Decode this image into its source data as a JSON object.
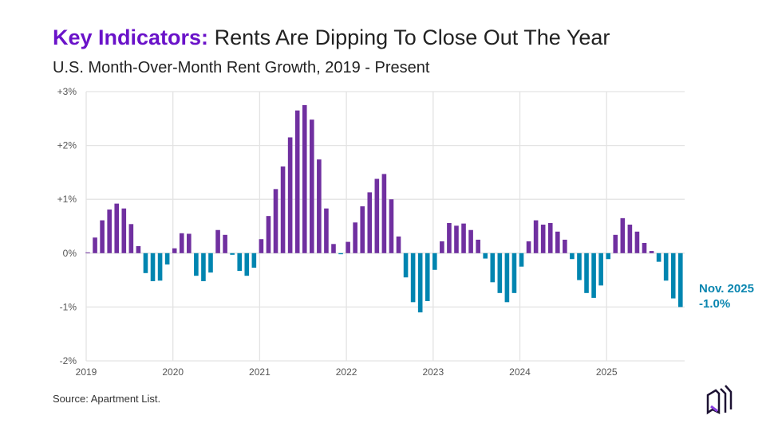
{
  "title_keyword": "Key Indicators:",
  "title_rest": " Rents Are Dipping To Close Out The Year",
  "subtitle": "U.S. Month-Over-Month Rent Growth, 2019 - Present",
  "source": "Source: Apartment List.",
  "callout": {
    "line1": "Nov. 2025",
    "line2": "-1.0%"
  },
  "colors": {
    "positive": "#7030a0",
    "negative": "#0085b0",
    "title_accent": "#6a12c9",
    "grid": "#e3e3e3"
  },
  "logo": "apartment-list-logo",
  "chart_data": {
    "type": "bar",
    "title": "Key Indicators: Rents Are Dipping To Close Out The Year",
    "subtitle": "U.S. Month-Over-Month Rent Growth, 2019 - Present",
    "xlabel": "",
    "ylabel": "",
    "x_start": "2019-01",
    "x_end": "2025-11",
    "x_tick_labels": [
      "2019",
      "2020",
      "2021",
      "2022",
      "2023",
      "2024",
      "2025"
    ],
    "y_tick_labels": [
      "-2%",
      "-1%",
      "0%",
      "+1%",
      "+2%",
      "+3%"
    ],
    "y_ticks": [
      -2,
      -1,
      0,
      1,
      2,
      3
    ],
    "ylim": [
      -2,
      3
    ],
    "grid": true,
    "unit": "%",
    "values": [
      0.0,
      0.29,
      0.61,
      0.81,
      0.92,
      0.83,
      0.54,
      0.13,
      -0.37,
      -0.52,
      -0.51,
      -0.21,
      0.09,
      0.37,
      0.36,
      -0.42,
      -0.52,
      -0.36,
      0.43,
      0.34,
      -0.03,
      -0.33,
      -0.42,
      -0.27,
      0.26,
      0.69,
      1.19,
      1.61,
      2.15,
      2.65,
      2.75,
      2.48,
      1.74,
      0.83,
      0.17,
      -0.02,
      0.21,
      0.57,
      0.87,
      1.13,
      1.38,
      1.47,
      1.0,
      0.31,
      -0.45,
      -0.91,
      -1.1,
      -0.89,
      -0.31,
      0.22,
      0.56,
      0.51,
      0.55,
      0.43,
      0.25,
      -0.1,
      -0.54,
      -0.74,
      -0.91,
      -0.74,
      -0.25,
      0.22,
      0.61,
      0.53,
      0.56,
      0.4,
      0.25,
      -0.11,
      -0.5,
      -0.74,
      -0.83,
      -0.6,
      -0.11,
      0.34,
      0.65,
      0.53,
      0.4,
      0.19,
      0.04,
      -0.16,
      -0.51,
      -0.84,
      -1.0
    ]
  }
}
